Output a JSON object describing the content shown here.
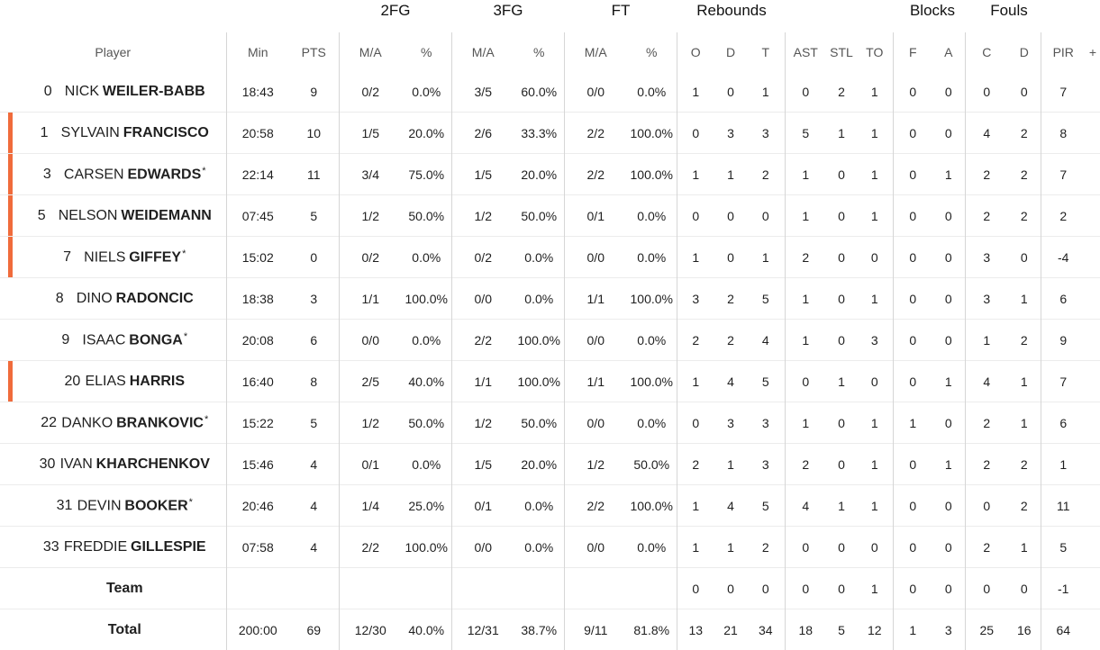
{
  "groups": {
    "fg2": "2FG",
    "fg3": "3FG",
    "ft": "FT",
    "rebounds": "Rebounds",
    "blocks": "Blocks",
    "fouls": "Fouls"
  },
  "headers": {
    "player": "Player",
    "min": "Min",
    "pts": "PTS",
    "fg2_ma": "M/A",
    "fg2_pct": "%",
    "fg3_ma": "M/A",
    "fg3_pct": "%",
    "ft_ma": "M/A",
    "ft_pct": "%",
    "reb_o": "O",
    "reb_d": "D",
    "reb_t": "T",
    "ast": "AST",
    "stl": "STL",
    "to": "TO",
    "blk_f": "F",
    "blk_a": "A",
    "foul_c": "C",
    "foul_d": "D",
    "pir": "PIR",
    "more": "+"
  },
  "colors": {
    "starter_marker": "#f06b3b"
  },
  "players": [
    {
      "num": "0",
      "first": "NICK",
      "last": "WEILER-BABB",
      "star": "",
      "starter": false,
      "min": "18:43",
      "pts": "9",
      "fg2_ma": "0/2",
      "fg2_pct": "0.0%",
      "fg3_ma": "3/5",
      "fg3_pct": "60.0%",
      "ft_ma": "0/0",
      "ft_pct": "0.0%",
      "reb_o": "1",
      "reb_d": "0",
      "reb_t": "1",
      "ast": "0",
      "stl": "2",
      "to": "1",
      "blk_f": "0",
      "blk_a": "0",
      "foul_c": "0",
      "foul_d": "0",
      "pir": "7"
    },
    {
      "num": "1",
      "first": "SYLVAIN",
      "last": "FRANCISCO",
      "star": "",
      "starter": true,
      "min": "20:58",
      "pts": "10",
      "fg2_ma": "1/5",
      "fg2_pct": "20.0%",
      "fg3_ma": "2/6",
      "fg3_pct": "33.3%",
      "ft_ma": "2/2",
      "ft_pct": "100.0%",
      "reb_o": "0",
      "reb_d": "3",
      "reb_t": "3",
      "ast": "5",
      "stl": "1",
      "to": "1",
      "blk_f": "0",
      "blk_a": "0",
      "foul_c": "4",
      "foul_d": "2",
      "pir": "8"
    },
    {
      "num": "3",
      "first": "CARSEN",
      "last": "EDWARDS",
      "star": "*",
      "starter": true,
      "min": "22:14",
      "pts": "11",
      "fg2_ma": "3/4",
      "fg2_pct": "75.0%",
      "fg3_ma": "1/5",
      "fg3_pct": "20.0%",
      "ft_ma": "2/2",
      "ft_pct": "100.0%",
      "reb_o": "1",
      "reb_d": "1",
      "reb_t": "2",
      "ast": "1",
      "stl": "0",
      "to": "1",
      "blk_f": "0",
      "blk_a": "1",
      "foul_c": "2",
      "foul_d": "2",
      "pir": "7"
    },
    {
      "num": "5",
      "first": "NELSON",
      "last": "WEIDEMANN",
      "star": "",
      "starter": true,
      "min": "07:45",
      "pts": "5",
      "fg2_ma": "1/2",
      "fg2_pct": "50.0%",
      "fg3_ma": "1/2",
      "fg3_pct": "50.0%",
      "ft_ma": "0/1",
      "ft_pct": "0.0%",
      "reb_o": "0",
      "reb_d": "0",
      "reb_t": "0",
      "ast": "1",
      "stl": "0",
      "to": "1",
      "blk_f": "0",
      "blk_a": "0",
      "foul_c": "2",
      "foul_d": "2",
      "pir": "2"
    },
    {
      "num": "7",
      "first": "NIELS",
      "last": "GIFFEY",
      "star": "*",
      "starter": true,
      "min": "15:02",
      "pts": "0",
      "fg2_ma": "0/2",
      "fg2_pct": "0.0%",
      "fg3_ma": "0/2",
      "fg3_pct": "0.0%",
      "ft_ma": "0/0",
      "ft_pct": "0.0%",
      "reb_o": "1",
      "reb_d": "0",
      "reb_t": "1",
      "ast": "2",
      "stl": "0",
      "to": "0",
      "blk_f": "0",
      "blk_a": "0",
      "foul_c": "3",
      "foul_d": "0",
      "pir": "-4"
    },
    {
      "num": "8",
      "first": "DINO",
      "last": "RADONCIC",
      "star": "",
      "starter": false,
      "min": "18:38",
      "pts": "3",
      "fg2_ma": "1/1",
      "fg2_pct": "100.0%",
      "fg3_ma": "0/0",
      "fg3_pct": "0.0%",
      "ft_ma": "1/1",
      "ft_pct": "100.0%",
      "reb_o": "3",
      "reb_d": "2",
      "reb_t": "5",
      "ast": "1",
      "stl": "0",
      "to": "1",
      "blk_f": "0",
      "blk_a": "0",
      "foul_c": "3",
      "foul_d": "1",
      "pir": "6"
    },
    {
      "num": "9",
      "first": "ISAAC",
      "last": "BONGA",
      "star": "*",
      "starter": false,
      "min": "20:08",
      "pts": "6",
      "fg2_ma": "0/0",
      "fg2_pct": "0.0%",
      "fg3_ma": "2/2",
      "fg3_pct": "100.0%",
      "ft_ma": "0/0",
      "ft_pct": "0.0%",
      "reb_o": "2",
      "reb_d": "2",
      "reb_t": "4",
      "ast": "1",
      "stl": "0",
      "to": "3",
      "blk_f": "0",
      "blk_a": "0",
      "foul_c": "1",
      "foul_d": "2",
      "pir": "9"
    },
    {
      "num": "20",
      "first": "ELIAS",
      "last": "HARRIS",
      "star": "",
      "starter": true,
      "min": "16:40",
      "pts": "8",
      "fg2_ma": "2/5",
      "fg2_pct": "40.0%",
      "fg3_ma": "1/1",
      "fg3_pct": "100.0%",
      "ft_ma": "1/1",
      "ft_pct": "100.0%",
      "reb_o": "1",
      "reb_d": "4",
      "reb_t": "5",
      "ast": "0",
      "stl": "1",
      "to": "0",
      "blk_f": "0",
      "blk_a": "1",
      "foul_c": "4",
      "foul_d": "1",
      "pir": "7"
    },
    {
      "num": "22",
      "first": "DANKO",
      "last": "BRANKOVIC",
      "star": "*",
      "starter": false,
      "min": "15:22",
      "pts": "5",
      "fg2_ma": "1/2",
      "fg2_pct": "50.0%",
      "fg3_ma": "1/2",
      "fg3_pct": "50.0%",
      "ft_ma": "0/0",
      "ft_pct": "0.0%",
      "reb_o": "0",
      "reb_d": "3",
      "reb_t": "3",
      "ast": "1",
      "stl": "0",
      "to": "1",
      "blk_f": "1",
      "blk_a": "0",
      "foul_c": "2",
      "foul_d": "1",
      "pir": "6"
    },
    {
      "num": "30",
      "first": "IVAN",
      "last": "KHARCHENKOV",
      "star": "",
      "starter": false,
      "min": "15:46",
      "pts": "4",
      "fg2_ma": "0/1",
      "fg2_pct": "0.0%",
      "fg3_ma": "1/5",
      "fg3_pct": "20.0%",
      "ft_ma": "1/2",
      "ft_pct": "50.0%",
      "reb_o": "2",
      "reb_d": "1",
      "reb_t": "3",
      "ast": "2",
      "stl": "0",
      "to": "1",
      "blk_f": "0",
      "blk_a": "1",
      "foul_c": "2",
      "foul_d": "2",
      "pir": "1"
    },
    {
      "num": "31",
      "first": "DEVIN",
      "last": "BOOKER",
      "star": "*",
      "starter": false,
      "min": "20:46",
      "pts": "4",
      "fg2_ma": "1/4",
      "fg2_pct": "25.0%",
      "fg3_ma": "0/1",
      "fg3_pct": "0.0%",
      "ft_ma": "2/2",
      "ft_pct": "100.0%",
      "reb_o": "1",
      "reb_d": "4",
      "reb_t": "5",
      "ast": "4",
      "stl": "1",
      "to": "1",
      "blk_f": "0",
      "blk_a": "0",
      "foul_c": "0",
      "foul_d": "2",
      "pir": "11"
    },
    {
      "num": "33",
      "first": "FREDDIE",
      "last": "GILLESPIE",
      "star": "",
      "starter": false,
      "min": "07:58",
      "pts": "4",
      "fg2_ma": "2/2",
      "fg2_pct": "100.0%",
      "fg3_ma": "0/0",
      "fg3_pct": "0.0%",
      "ft_ma": "0/0",
      "ft_pct": "0.0%",
      "reb_o": "1",
      "reb_d": "1",
      "reb_t": "2",
      "ast": "0",
      "stl": "0",
      "to": "0",
      "blk_f": "0",
      "blk_a": "0",
      "foul_c": "2",
      "foul_d": "1",
      "pir": "5"
    }
  ],
  "team": {
    "label": "Team",
    "min": "",
    "pts": "",
    "fg2_ma": "",
    "fg2_pct": "",
    "fg3_ma": "",
    "fg3_pct": "",
    "ft_ma": "",
    "ft_pct": "",
    "reb_o": "0",
    "reb_d": "0",
    "reb_t": "0",
    "ast": "0",
    "stl": "0",
    "to": "1",
    "blk_f": "0",
    "blk_a": "0",
    "foul_c": "0",
    "foul_d": "0",
    "pir": "-1"
  },
  "total": {
    "label": "Total",
    "min": "200:00",
    "pts": "69",
    "fg2_ma": "12/30",
    "fg2_pct": "40.0%",
    "fg3_ma": "12/31",
    "fg3_pct": "38.7%",
    "ft_ma": "9/11",
    "ft_pct": "81.8%",
    "reb_o": "13",
    "reb_d": "21",
    "reb_t": "34",
    "ast": "18",
    "stl": "5",
    "to": "12",
    "blk_f": "1",
    "blk_a": "3",
    "foul_c": "25",
    "foul_d": "16",
    "pir": "64"
  }
}
